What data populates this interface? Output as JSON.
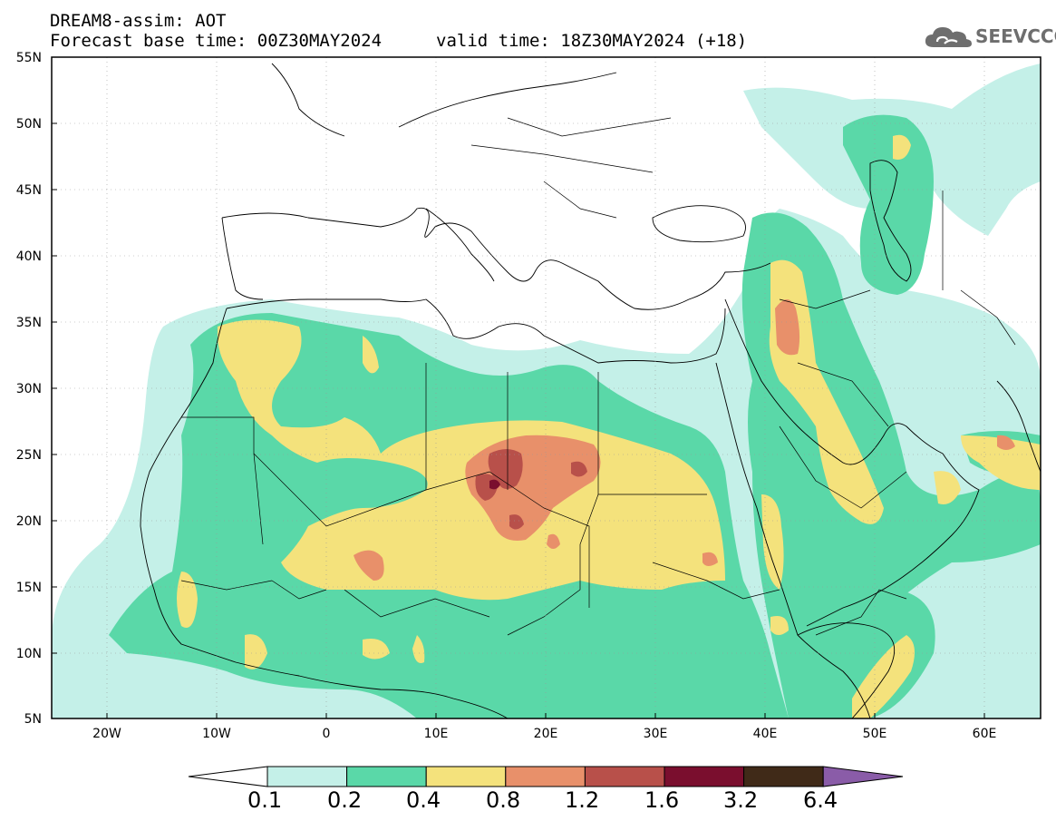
{
  "title_line1": "DREAM8-assim: AOT",
  "title_line2": "Forecast base time: 00Z30MAY2024",
  "valid_time": "valid time: 18Z30MAY2024 (+18)",
  "logo_text": "SEEVCCC",
  "lat_labels": [
    "55N",
    "50N",
    "45N",
    "40N",
    "35N",
    "30N",
    "25N",
    "20N",
    "15N",
    "10N",
    "5N"
  ],
  "lon_labels": [
    "20W",
    "10W",
    "0",
    "10E",
    "20E",
    "30E",
    "40E",
    "50E",
    "60E"
  ],
  "colorbar": {
    "levels": [
      "0.1",
      "0.2",
      "0.4",
      "0.8",
      "1.2",
      "1.6",
      "3.2",
      "6.4"
    ],
    "colors": [
      "#ffffff",
      "#c4f0e8",
      "#5ad8a8",
      "#f4e27c",
      "#e8906a",
      "#b8504a",
      "#7a0e2e",
      "#402a18",
      "#8a5ca8"
    ]
  }
}
